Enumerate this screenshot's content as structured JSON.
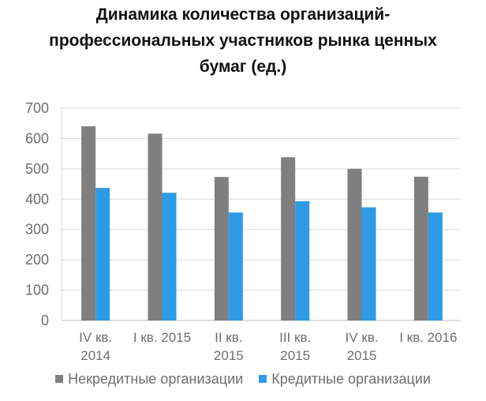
{
  "chart_data": {
    "type": "bar",
    "title_lines": [
      "Динамика количества организаций-",
      "профессиональных участников рынка ценных",
      "бумаг (ед.)"
    ],
    "categories": [
      [
        "IV кв.",
        "2014"
      ],
      [
        "I кв. 2015"
      ],
      [
        "II кв.",
        "2015"
      ],
      [
        "III кв.",
        "2015"
      ],
      [
        "IV кв.",
        "2015"
      ],
      [
        "I кв. 2016"
      ]
    ],
    "series": [
      {
        "name": "Некредитные организации",
        "color": "#7f7f7f",
        "values": [
          640,
          616,
          473,
          538,
          500,
          474
        ]
      },
      {
        "name": "Кредитные организации",
        "color": "#2e9ae6",
        "values": [
          437,
          421,
          356,
          393,
          373,
          356
        ]
      }
    ],
    "ylim": [
      0,
      700
    ],
    "yticks": [
      0,
      100,
      200,
      300,
      400,
      500,
      600,
      700
    ],
    "grid": true,
    "legend_position": "bottom"
  }
}
